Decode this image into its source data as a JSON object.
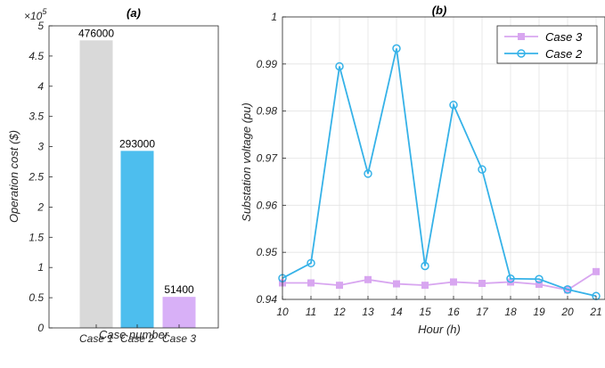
{
  "chart_data": [
    {
      "type": "bar",
      "title": "(a)",
      "xlabel": "Case number",
      "ylabel": "Operation cost ($)",
      "exponent_label": "×10",
      "exponent_power": "5",
      "categories": [
        "Case 1",
        "Case 2",
        "Case 3"
      ],
      "values": [
        476000,
        293000,
        51400
      ],
      "data_labels": [
        "476000",
        "293000",
        "51400"
      ],
      "colors": [
        "#d9d9d9",
        "#4dbeee",
        "#d8b0f7"
      ],
      "ylim": [
        0,
        500000
      ],
      "yticks": [
        0,
        50000,
        100000,
        150000,
        200000,
        250000,
        300000,
        350000,
        400000,
        450000,
        500000
      ],
      "yticklabels": [
        "0",
        "0.5",
        "1",
        "1.5",
        "2",
        "2.5",
        "3",
        "3.5",
        "4",
        "4.5",
        "5"
      ],
      "grid": false
    },
    {
      "type": "line",
      "title": "(b)",
      "xlabel": "Hour (h)",
      "ylabel": "Substation voltage (pu)",
      "x": [
        10,
        11,
        12,
        13,
        14,
        15,
        16,
        17,
        18,
        19,
        20,
        21
      ],
      "xlim": [
        10,
        21
      ],
      "xticklabels": [
        "10",
        "11",
        "12",
        "13",
        "14",
        "15",
        "16",
        "17",
        "18",
        "19",
        "20",
        "21"
      ],
      "ylim": [
        0.94,
        1.0
      ],
      "yticks": [
        0.94,
        0.95,
        0.96,
        0.97,
        0.98,
        0.99,
        1.0
      ],
      "yticklabels": [
        "0.94",
        "0.95",
        "0.96",
        "0.97",
        "0.98",
        "0.99",
        "1"
      ],
      "grid": true,
      "legend_position": "top-right",
      "series": [
        {
          "name": "Case 3",
          "color": "#d8a6f0",
          "marker": "square",
          "values": [
            0.9435,
            0.9435,
            0.943,
            0.9442,
            0.9433,
            0.943,
            0.9437,
            0.9434,
            0.9437,
            0.9432,
            0.942,
            0.9459
          ]
        },
        {
          "name": "Case 2",
          "color": "#36b2e8",
          "marker": "circle",
          "values": [
            0.9445,
            0.9477,
            0.9895,
            0.9667,
            0.9933,
            0.9471,
            0.9813,
            0.9676,
            0.9444,
            0.9443,
            0.9421,
            0.9407
          ]
        }
      ]
    }
  ]
}
